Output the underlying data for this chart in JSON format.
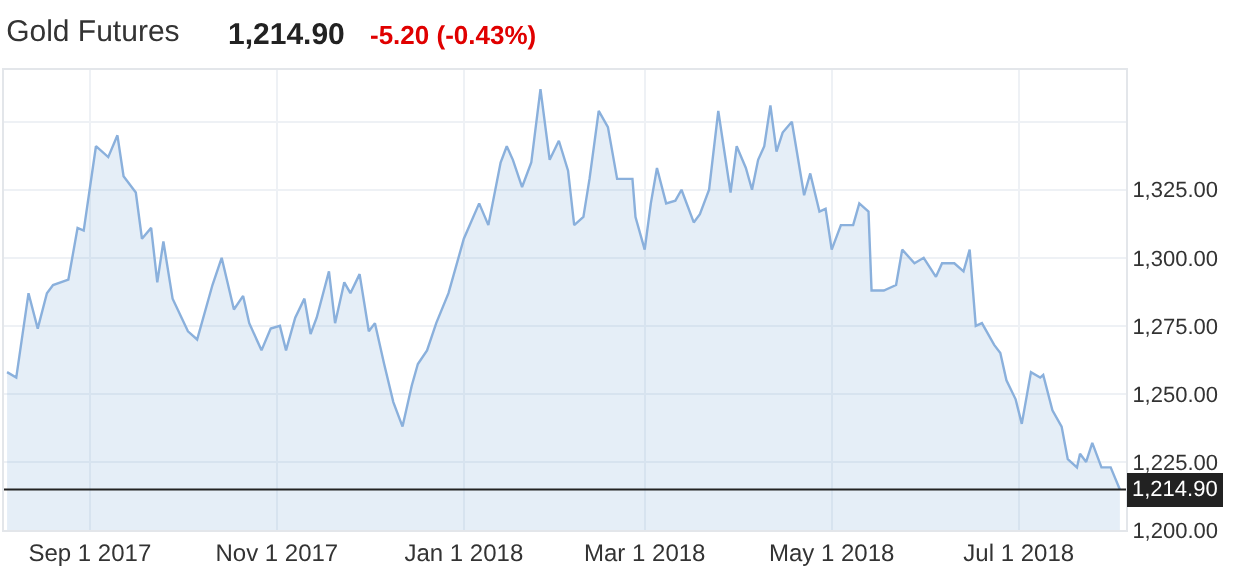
{
  "chart_data": {
    "type": "area",
    "title": "Gold Futures",
    "annotations": [
      "1,214.90",
      "-5.20 (-0.43%)"
    ],
    "x": [
      "2017-08-05",
      "2017-08-08",
      "2017-08-12",
      "2017-08-15",
      "2017-08-18",
      "2017-08-20",
      "2017-08-25",
      "2017-08-28",
      "2017-08-30",
      "2017-09-03",
      "2017-09-07",
      "2017-09-10",
      "2017-09-12",
      "2017-09-16",
      "2017-09-18",
      "2017-09-21",
      "2017-09-23",
      "2017-09-25",
      "2017-09-28",
      "2017-10-03",
      "2017-10-06",
      "2017-10-11",
      "2017-10-14",
      "2017-10-18",
      "2017-10-21",
      "2017-10-23",
      "2017-10-27",
      "2017-10-30",
      "2017-11-02",
      "2017-11-04",
      "2017-11-07",
      "2017-11-10",
      "2017-11-12",
      "2017-11-14",
      "2017-11-18",
      "2017-11-20",
      "2017-11-23",
      "2017-11-25",
      "2017-11-28",
      "2017-12-01",
      "2017-12-03",
      "2017-12-06",
      "2017-12-09",
      "2017-12-12",
      "2017-12-15",
      "2017-12-17",
      "2017-12-20",
      "2017-12-23",
      "2017-12-27",
      "2018-01-01",
      "2018-01-06",
      "2018-01-09",
      "2018-01-13",
      "2018-01-15",
      "2018-01-17",
      "2018-01-20",
      "2018-01-23",
      "2018-01-26",
      "2018-01-29",
      "2018-02-01",
      "2018-02-04",
      "2018-02-06",
      "2018-02-09",
      "2018-02-11",
      "2018-02-14",
      "2018-02-17",
      "2018-02-20",
      "2018-02-25",
      "2018-02-26",
      "2018-03-01",
      "2018-03-03",
      "2018-03-05",
      "2018-03-08",
      "2018-03-11",
      "2018-03-13",
      "2018-03-17",
      "2018-03-19",
      "2018-03-22",
      "2018-03-25",
      "2018-03-29",
      "2018-03-31",
      "2018-04-03",
      "2018-04-05",
      "2018-04-07",
      "2018-04-09",
      "2018-04-11",
      "2018-04-13",
      "2018-04-15",
      "2018-04-18",
      "2018-04-22",
      "2018-04-24",
      "2018-04-27",
      "2018-04-29",
      "2018-05-01",
      "2018-05-04",
      "2018-05-08",
      "2018-05-10",
      "2018-05-13",
      "2018-05-14",
      "2018-05-18",
      "2018-05-22",
      "2018-05-24",
      "2018-05-28",
      "2018-05-31",
      "2018-06-04",
      "2018-06-06",
      "2018-06-10",
      "2018-06-13",
      "2018-06-15",
      "2018-06-17",
      "2018-06-19",
      "2018-06-23",
      "2018-06-25",
      "2018-06-27",
      "2018-06-30",
      "2018-07-02",
      "2018-07-05",
      "2018-07-08",
      "2018-07-09",
      "2018-07-12",
      "2018-07-15",
      "2018-07-17",
      "2018-07-20",
      "2018-07-21",
      "2018-07-23",
      "2018-07-25",
      "2018-07-28",
      "2018-07-31",
      "2018-08-03"
    ],
    "series": [
      {
        "color": "#8ab0dc",
        "values": [
          1258,
          1256,
          1287,
          1274,
          1287,
          1290,
          1292,
          1311,
          1310,
          1341,
          1337,
          1345,
          1330,
          1324,
          1307,
          1311,
          1291,
          1306,
          1285,
          1273,
          1270,
          1290,
          1300,
          1281,
          1286,
          1276,
          1266,
          1274,
          1275,
          1266,
          1278,
          1285,
          1272,
          1278,
          1295,
          1276,
          1291,
          1287,
          1294,
          1273,
          1276,
          1261,
          1247,
          1238,
          1253,
          1261,
          1266,
          1276,
          1287,
          1307,
          1320,
          1312,
          1335,
          1341,
          1336,
          1326,
          1335,
          1362,
          1336,
          1343,
          1332,
          1312,
          1315,
          1329,
          1354,
          1348,
          1329,
          1329,
          1315,
          1303,
          1320,
          1333,
          1320,
          1321,
          1325,
          1313,
          1316,
          1325,
          1354,
          1324,
          1341,
          1333,
          1325,
          1336,
          1341,
          1356,
          1339,
          1346,
          1350,
          1323,
          1331,
          1317,
          1318,
          1303,
          1312,
          1312,
          1320,
          1317,
          1288,
          1288,
          1290,
          1303,
          1298,
          1300,
          1293,
          1298,
          1298,
          1295,
          1303,
          1275,
          1276,
          1268,
          1265,
          1255,
          1248,
          1239,
          1258,
          1256,
          1257,
          1244,
          1238,
          1226,
          1223,
          1228,
          1225,
          1232,
          1223,
          1223,
          1214.9
        ]
      }
    ],
    "xlim": [
      "2017-08-04",
      "2018-08-05"
    ],
    "xticks": [
      {
        "value": "2017-09-01",
        "label": "Sep 1 2017"
      },
      {
        "value": "2017-11-01",
        "label": "Nov 1 2017"
      },
      {
        "value": "2018-01-01",
        "label": "Jan 1 2018"
      },
      {
        "value": "2018-03-01",
        "label": "Mar 1 2018"
      },
      {
        "value": "2018-05-01",
        "label": "May 1 2018"
      },
      {
        "value": "2018-07-01",
        "label": "Jul 1 2018"
      }
    ],
    "ylim": [
      1200,
      1369
    ],
    "yticks": [
      {
        "value": 1200,
        "label": "1,200.00"
      },
      {
        "value": 1225,
        "label": "1,225.00"
      },
      {
        "value": 1250,
        "label": "1,250.00"
      },
      {
        "value": 1275,
        "label": "1,275.00"
      },
      {
        "value": 1300,
        "label": "1,300.00"
      },
      {
        "value": 1325,
        "label": "1,325.00"
      },
      {
        "value": 1350,
        "label": null
      }
    ],
    "ref_lines": [
      {
        "axis": "y",
        "value": 1214.9,
        "label": "1,214.90",
        "color": "#222222"
      }
    ],
    "grid": true,
    "marker": "none",
    "line_style": "solid"
  }
}
